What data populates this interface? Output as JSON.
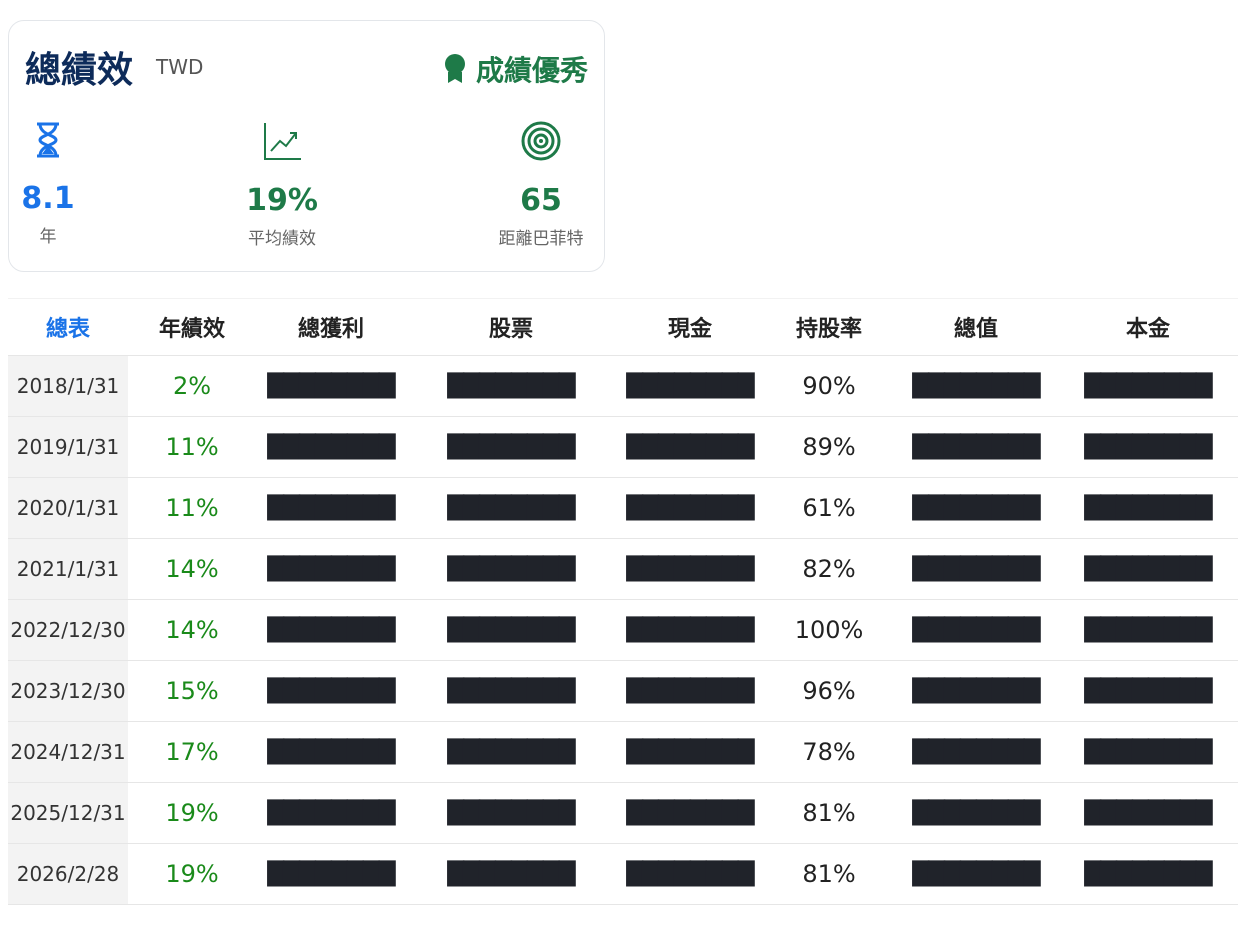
{
  "header": {
    "title": "總績效",
    "currency": "TWD",
    "badge": "成績優秀"
  },
  "stats": [
    {
      "value": "8.1",
      "label": "年"
    },
    {
      "value": "19%",
      "label": "平均績效"
    },
    {
      "value": "65",
      "label": "距離巴菲特"
    }
  ],
  "table": {
    "columns": [
      "總表",
      "年績效",
      "總獲利",
      "股票",
      "現金",
      "持股率",
      "總值",
      "本金"
    ],
    "rows": [
      [
        "2018/1/31",
        "2%",
        "████████",
        "████████",
        "████████",
        "90%",
        "████████",
        "████████"
      ],
      [
        "2019/1/31",
        "11%",
        "████████",
        "████████",
        "████████",
        "89%",
        "████████",
        "████████"
      ],
      [
        "2020/1/31",
        "11%",
        "████████",
        "████████",
        "████████",
        "61%",
        "████████",
        "████████"
      ],
      [
        "2021/1/31",
        "14%",
        "████████",
        "████████",
        "████████",
        "82%",
        "████████",
        "████████"
      ],
      [
        "2022/12/30",
        "14%",
        "████████",
        "████████",
        "████████",
        "100%",
        "████████",
        "████████"
      ],
      [
        "2023/12/30",
        "15%",
        "████████",
        "████████",
        "████████",
        "96%",
        "████████",
        "████████"
      ],
      [
        "2024/12/31",
        "17%",
        "████████",
        "████████",
        "████████",
        "78%",
        "████████",
        "████████"
      ],
      [
        "2025/12/31",
        "19%",
        "████████",
        "████████",
        "████████",
        "81%",
        "████████",
        "████████"
      ],
      [
        "2026/2/28",
        "19%",
        "████████",
        "████████",
        "████████",
        "81%",
        "████████",
        "████████"
      ]
    ]
  }
}
